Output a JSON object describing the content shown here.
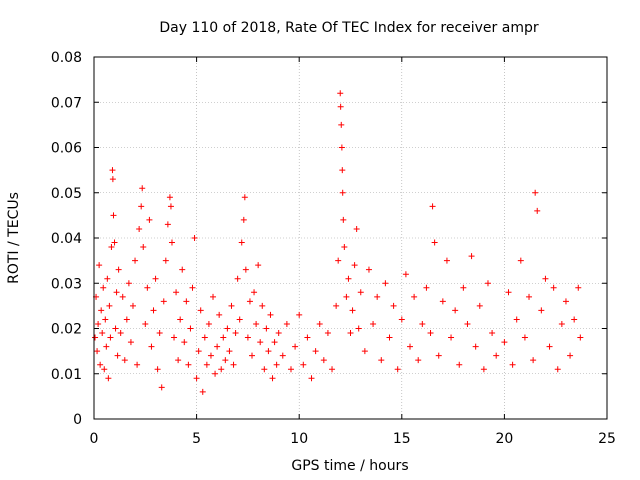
{
  "chart_data": {
    "type": "scatter",
    "title": "Day 110 of 2018, Rate Of TEC Index for receiver ampr",
    "xlabel": "GPS time / hours",
    "ylabel": "ROTI / TECUs",
    "xlim": [
      0,
      25
    ],
    "ylim": [
      0,
      0.08
    ],
    "grid": true,
    "marker": "plus",
    "color": "#ff0000",
    "x_ticks": [
      0,
      5,
      10,
      15,
      20,
      25
    ],
    "x_tick_labels": [
      "0",
      "5",
      "10",
      "15",
      "20",
      "25"
    ],
    "y_ticks": [
      0,
      0.01,
      0.02,
      0.03,
      0.04,
      0.05,
      0.06,
      0.07,
      0.08
    ],
    "y_tick_labels": [
      "0",
      "0.01",
      "0.02",
      "0.03",
      "0.04",
      "0.05",
      "0.06",
      "0.07",
      "0.08"
    ],
    "series": [
      {
        "name": "ROTI",
        "points": [
          [
            0.05,
            0.018
          ],
          [
            0.1,
            0.027
          ],
          [
            0.15,
            0.015
          ],
          [
            0.2,
            0.021
          ],
          [
            0.25,
            0.034
          ],
          [
            0.3,
            0.012
          ],
          [
            0.35,
            0.024
          ],
          [
            0.4,
            0.019
          ],
          [
            0.45,
            0.029
          ],
          [
            0.5,
            0.011
          ],
          [
            0.55,
            0.022
          ],
          [
            0.6,
            0.016
          ],
          [
            0.65,
            0.031
          ],
          [
            0.7,
            0.009
          ],
          [
            0.75,
            0.025
          ],
          [
            0.8,
            0.018
          ],
          [
            0.85,
            0.038
          ],
          [
            0.9,
            0.055
          ],
          [
            0.92,
            0.053
          ],
          [
            0.95,
            0.045
          ],
          [
            1.0,
            0.039
          ],
          [
            1.05,
            0.02
          ],
          [
            1.1,
            0.028
          ],
          [
            1.15,
            0.014
          ],
          [
            1.2,
            0.033
          ],
          [
            1.3,
            0.019
          ],
          [
            1.4,
            0.027
          ],
          [
            1.5,
            0.013
          ],
          [
            1.6,
            0.022
          ],
          [
            1.7,
            0.03
          ],
          [
            1.8,
            0.017
          ],
          [
            1.9,
            0.025
          ],
          [
            2.0,
            0.035
          ],
          [
            2.1,
            0.012
          ],
          [
            2.2,
            0.042
          ],
          [
            2.3,
            0.047
          ],
          [
            2.35,
            0.051
          ],
          [
            2.4,
            0.038
          ],
          [
            2.5,
            0.021
          ],
          [
            2.6,
            0.029
          ],
          [
            2.7,
            0.044
          ],
          [
            2.8,
            0.016
          ],
          [
            2.9,
            0.024
          ],
          [
            3.0,
            0.031
          ],
          [
            3.1,
            0.011
          ],
          [
            3.2,
            0.019
          ],
          [
            3.3,
            0.007
          ],
          [
            3.4,
            0.026
          ],
          [
            3.5,
            0.035
          ],
          [
            3.6,
            0.043
          ],
          [
            3.7,
            0.049
          ],
          [
            3.75,
            0.047
          ],
          [
            3.8,
            0.039
          ],
          [
            3.9,
            0.018
          ],
          [
            4.0,
            0.028
          ],
          [
            4.1,
            0.013
          ],
          [
            4.2,
            0.022
          ],
          [
            4.3,
            0.033
          ],
          [
            4.4,
            0.017
          ],
          [
            4.5,
            0.026
          ],
          [
            4.6,
            0.012
          ],
          [
            4.7,
            0.02
          ],
          [
            4.8,
            0.029
          ],
          [
            4.9,
            0.04
          ],
          [
            5.0,
            0.009
          ],
          [
            5.1,
            0.015
          ],
          [
            5.2,
            0.024
          ],
          [
            5.3,
            0.006
          ],
          [
            5.4,
            0.018
          ],
          [
            5.5,
            0.012
          ],
          [
            5.6,
            0.021
          ],
          [
            5.7,
            0.014
          ],
          [
            5.8,
            0.027
          ],
          [
            5.9,
            0.01
          ],
          [
            6.0,
            0.016
          ],
          [
            6.1,
            0.023
          ],
          [
            6.2,
            0.011
          ],
          [
            6.3,
            0.018
          ],
          [
            6.4,
            0.013
          ],
          [
            6.5,
            0.02
          ],
          [
            6.6,
            0.015
          ],
          [
            6.7,
            0.025
          ],
          [
            6.8,
            0.012
          ],
          [
            6.9,
            0.019
          ],
          [
            7.0,
            0.031
          ],
          [
            7.1,
            0.022
          ],
          [
            7.2,
            0.039
          ],
          [
            7.3,
            0.044
          ],
          [
            7.35,
            0.049
          ],
          [
            7.4,
            0.033
          ],
          [
            7.5,
            0.018
          ],
          [
            7.6,
            0.026
          ],
          [
            7.7,
            0.014
          ],
          [
            7.8,
            0.028
          ],
          [
            7.9,
            0.021
          ],
          [
            8.0,
            0.034
          ],
          [
            8.1,
            0.017
          ],
          [
            8.2,
            0.025
          ],
          [
            8.3,
            0.011
          ],
          [
            8.4,
            0.02
          ],
          [
            8.5,
            0.015
          ],
          [
            8.6,
            0.023
          ],
          [
            8.7,
            0.009
          ],
          [
            8.8,
            0.017
          ],
          [
            8.9,
            0.012
          ],
          [
            9.0,
            0.019
          ],
          [
            9.2,
            0.014
          ],
          [
            9.4,
            0.021
          ],
          [
            9.6,
            0.011
          ],
          [
            9.8,
            0.016
          ],
          [
            10.0,
            0.023
          ],
          [
            10.2,
            0.012
          ],
          [
            10.4,
            0.018
          ],
          [
            10.6,
            0.009
          ],
          [
            10.8,
            0.015
          ],
          [
            11.0,
            0.021
          ],
          [
            11.2,
            0.013
          ],
          [
            11.4,
            0.019
          ],
          [
            11.6,
            0.011
          ],
          [
            11.8,
            0.025
          ],
          [
            11.9,
            0.035
          ],
          [
            12.0,
            0.072
          ],
          [
            12.02,
            0.069
          ],
          [
            12.05,
            0.065
          ],
          [
            12.08,
            0.06
          ],
          [
            12.1,
            0.055
          ],
          [
            12.12,
            0.05
          ],
          [
            12.15,
            0.044
          ],
          [
            12.2,
            0.038
          ],
          [
            12.3,
            0.027
          ],
          [
            12.4,
            0.031
          ],
          [
            12.5,
            0.019
          ],
          [
            12.6,
            0.024
          ],
          [
            12.7,
            0.034
          ],
          [
            12.8,
            0.042
          ],
          [
            12.9,
            0.02
          ],
          [
            13.0,
            0.028
          ],
          [
            13.2,
            0.015
          ],
          [
            13.4,
            0.033
          ],
          [
            13.6,
            0.021
          ],
          [
            13.8,
            0.027
          ],
          [
            14.0,
            0.013
          ],
          [
            14.2,
            0.03
          ],
          [
            14.4,
            0.018
          ],
          [
            14.6,
            0.025
          ],
          [
            14.8,
            0.011
          ],
          [
            15.0,
            0.022
          ],
          [
            15.2,
            0.032
          ],
          [
            15.4,
            0.016
          ],
          [
            15.6,
            0.027
          ],
          [
            15.8,
            0.013
          ],
          [
            16.0,
            0.021
          ],
          [
            16.2,
            0.029
          ],
          [
            16.4,
            0.019
          ],
          [
            16.5,
            0.047
          ],
          [
            16.6,
            0.039
          ],
          [
            16.8,
            0.014
          ],
          [
            17.0,
            0.026
          ],
          [
            17.2,
            0.035
          ],
          [
            17.4,
            0.018
          ],
          [
            17.6,
            0.024
          ],
          [
            17.8,
            0.012
          ],
          [
            18.0,
            0.029
          ],
          [
            18.2,
            0.021
          ],
          [
            18.4,
            0.036
          ],
          [
            18.6,
            0.016
          ],
          [
            18.8,
            0.025
          ],
          [
            19.0,
            0.011
          ],
          [
            19.2,
            0.03
          ],
          [
            19.4,
            0.019
          ],
          [
            19.6,
            0.014
          ],
          [
            20.0,
            0.017
          ],
          [
            20.2,
            0.028
          ],
          [
            20.4,
            0.012
          ],
          [
            20.6,
            0.022
          ],
          [
            20.8,
            0.035
          ],
          [
            21.0,
            0.018
          ],
          [
            21.2,
            0.027
          ],
          [
            21.4,
            0.013
          ],
          [
            21.5,
            0.05
          ],
          [
            21.6,
            0.046
          ],
          [
            21.8,
            0.024
          ],
          [
            22.0,
            0.031
          ],
          [
            22.2,
            0.016
          ],
          [
            22.4,
            0.029
          ],
          [
            22.6,
            0.011
          ],
          [
            22.8,
            0.021
          ],
          [
            23.0,
            0.026
          ],
          [
            23.2,
            0.014
          ],
          [
            23.4,
            0.022
          ],
          [
            23.6,
            0.029
          ],
          [
            23.7,
            0.018
          ]
        ]
      }
    ]
  }
}
